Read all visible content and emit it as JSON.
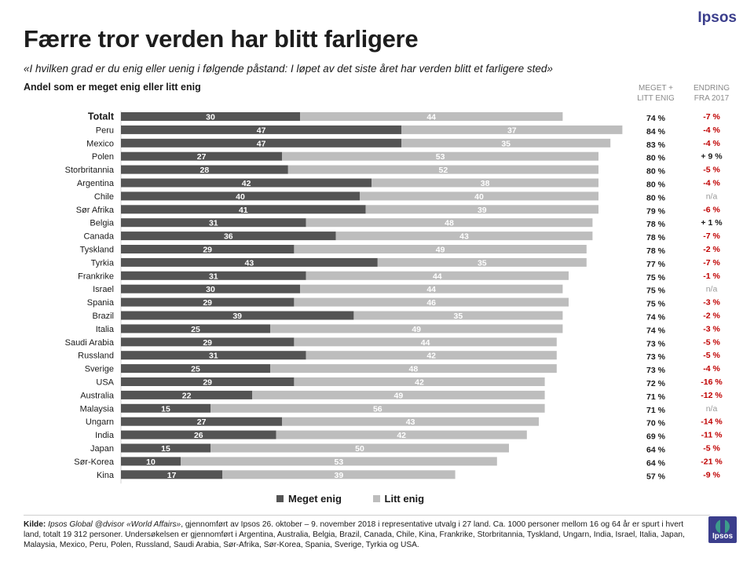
{
  "brand": "Ipsos",
  "title": "Færre tror verden har blitt farligere",
  "subtitle": "«I hvilken grad er du enig eller uenig i følgende påstand: I løpet av det siste året har verden blitt et farligere sted»",
  "basis": "Andel som er meget enig eller litt enig",
  "column_headers": {
    "total": [
      "MEGET +",
      "LITT ENIG"
    ],
    "change": [
      "ENDRING",
      "FRA 2017"
    ]
  },
  "colors": {
    "meget_enig": "#545454",
    "litt_enig": "#bdbdbd",
    "negative_change": "#c00000",
    "positive_change": "#1a1a1a",
    "na_change": "#9a9a9a",
    "brand": "#3b3e8c"
  },
  "legend": [
    {
      "label": "Meget enig",
      "color": "#545454"
    },
    {
      "label": "Litt enig",
      "color": "#bdbdbd"
    }
  ],
  "chart_data": {
    "type": "bar",
    "orientation": "horizontal",
    "stacked": true,
    "xlim": [
      0,
      85
    ],
    "categories": [
      "Totalt",
      "Peru",
      "Mexico",
      "Polen",
      "Storbritannia",
      "Argentina",
      "Chile",
      "Sør Afrika",
      "Belgia",
      "Canada",
      "Tyskland",
      "Tyrkia",
      "Frankrike",
      "Israel",
      "Spania",
      "Brazil",
      "Italia",
      "Saudi Arabia",
      "Russland",
      "Sverige",
      "USA",
      "Australia",
      "Malaysia",
      "Ungarn",
      "India",
      "Japan",
      "Sør-Korea",
      "Kina"
    ],
    "series": [
      {
        "name": "Meget enig",
        "values": [
          30,
          47,
          47,
          27,
          28,
          42,
          40,
          41,
          31,
          36,
          29,
          43,
          31,
          30,
          29,
          39,
          25,
          29,
          31,
          25,
          29,
          22,
          15,
          27,
          26,
          15,
          10,
          17
        ]
      },
      {
        "name": "Litt enig",
        "values": [
          44,
          37,
          35,
          53,
          52,
          38,
          40,
          39,
          48,
          43,
          49,
          35,
          44,
          44,
          46,
          35,
          49,
          44,
          42,
          48,
          42,
          49,
          56,
          43,
          42,
          50,
          53,
          39
        ]
      }
    ],
    "totals": [
      "74 %",
      "84 %",
      "83 %",
      "80 %",
      "80 %",
      "80 %",
      "80 %",
      "79 %",
      "78 %",
      "78 %",
      "78 %",
      "77 %",
      "75 %",
      "75 %",
      "75 %",
      "74 %",
      "74 %",
      "73 %",
      "73 %",
      "73 %",
      "72 %",
      "71 %",
      "71 %",
      "70 %",
      "69 %",
      "64 %",
      "64 %",
      "57 %"
    ],
    "changes": [
      "-7 %",
      "-4 %",
      "-4 %",
      "+ 9 %",
      "-5 %",
      "-4 %",
      "n/a",
      "-6 %",
      "+ 1 %",
      "-7 %",
      "-2 %",
      "-7 %",
      "-1 %",
      "n/a",
      "-3 %",
      "-2 %",
      "-3 %",
      "-5 %",
      "-5 %",
      "-4 %",
      "-16 %",
      "-12 %",
      "n/a",
      "-14 %",
      "-11 %",
      "-5 %",
      "-21 %",
      "-9 %"
    ]
  },
  "source": {
    "label": "Kilde:",
    "study": "Ipsos Global @dvisor «World Affairs»",
    "text": ", gjennomført av Ipsos 26. oktober – 9. november 2018 i representative utvalg i 27 land. Ca. 1000 personer mellom 16 og 64 år er spurt i hvert land, totalt 19 312 personer. Undersøkelsen er gjennomført i Argentina, Australia, Belgia, Brazil, Canada, Chile, Kina, Frankrike, Storbritannia, Tyskland, Ungarn, India, Israel, Italia, Japan, Malaysia, Mexico, Peru, Polen, Russland, Saudi Arabia, Sør-Afrika, Sør-Korea, Spania, Sverige, Tyrkia og USA."
  },
  "logo_text": "Ipsos"
}
